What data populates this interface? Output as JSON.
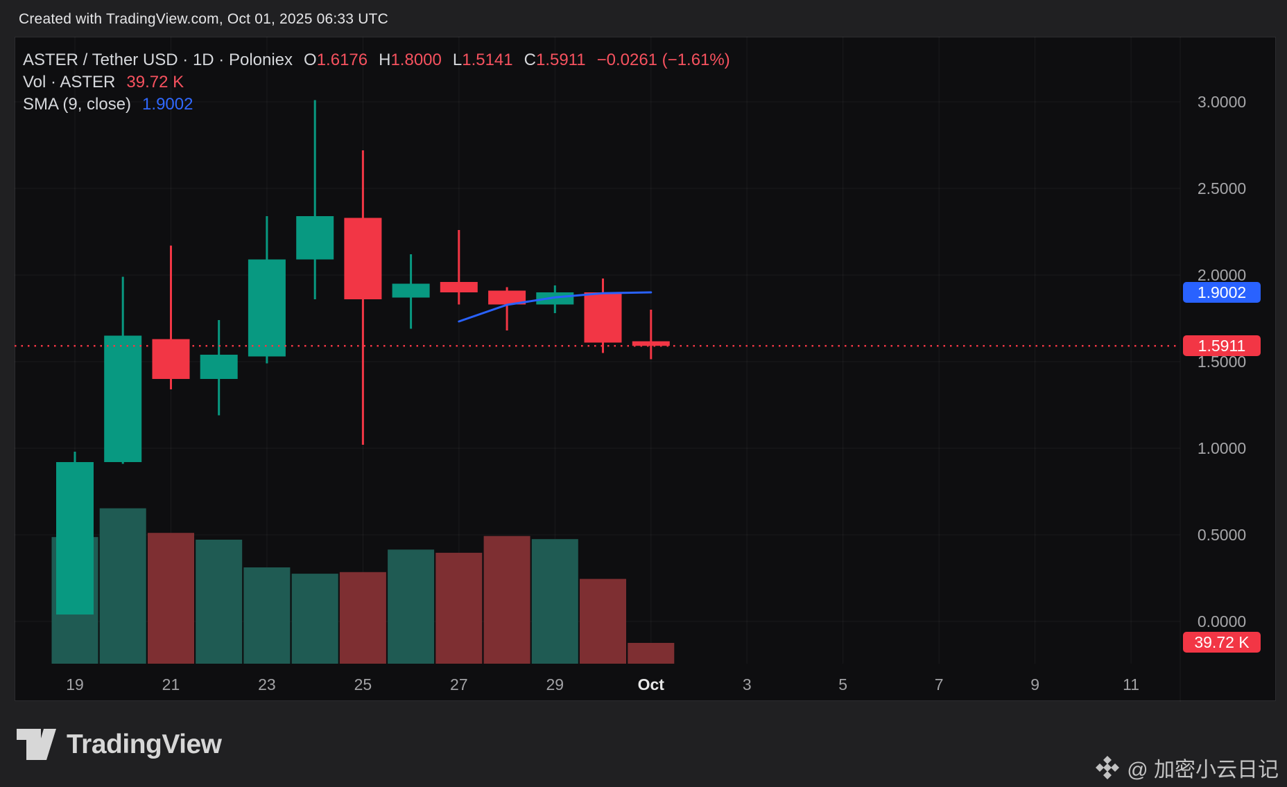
{
  "frame": {
    "attribution": "Created with TradingView.com, Oct 01, 2025 06:33 UTC"
  },
  "legend": {
    "symbol_line": {
      "title": "ASTER / Tether USD · 1D · Poloniex",
      "o_label": "O",
      "o_value": "1.6176",
      "h_label": "H",
      "h_value": "1.8000",
      "l_label": "L",
      "l_value": "1.5141",
      "c_label": "C",
      "c_value": "1.5911",
      "change": "−0.0261 (−1.61%)"
    },
    "volume_line": {
      "label": "Vol · ASTER",
      "value": "39.72 K"
    },
    "sma_line": {
      "label": "SMA (9, close)",
      "value": "1.9002"
    }
  },
  "price_scale": {
    "ticks": [
      {
        "label": "3.0000",
        "value": 3.0
      },
      {
        "label": "2.5000",
        "value": 2.5
      },
      {
        "label": "2.0000",
        "value": 2.0
      },
      {
        "label": "1.5000",
        "value": 1.5
      },
      {
        "label": "1.0000",
        "value": 1.0
      },
      {
        "label": "0.5000",
        "value": 0.5
      },
      {
        "label": "0.0000",
        "value": 0.0
      }
    ],
    "sma_badge": "1.9002",
    "last_price_badge": "1.5911",
    "volume_badge": "39.72 K"
  },
  "time_scale": {
    "ticks": [
      {
        "label": "19",
        "day_index": 0
      },
      {
        "label": "21",
        "day_index": 2
      },
      {
        "label": "23",
        "day_index": 4
      },
      {
        "label": "25",
        "day_index": 6
      },
      {
        "label": "27",
        "day_index": 8
      },
      {
        "label": "29",
        "day_index": 10
      },
      {
        "label": "Oct",
        "day_index": 12,
        "emphasis": true
      },
      {
        "label": "3",
        "day_index": 14
      },
      {
        "label": "5",
        "day_index": 16
      },
      {
        "label": "7",
        "day_index": 18
      },
      {
        "label": "9",
        "day_index": 20
      },
      {
        "label": "11",
        "day_index": 22
      }
    ]
  },
  "chart_data": {
    "type": "candlestick+volume",
    "symbol": "ASTER / Tether USD",
    "interval": "1D",
    "exchange": "Poloniex",
    "title": "ASTER / Tether USD · 1D · Poloniex",
    "price_axis": {
      "min": 0.0,
      "max": 3.0,
      "step": 0.5,
      "grid": true,
      "side": "right"
    },
    "dates": [
      "Sep 19",
      "Sep 20",
      "Sep 21",
      "Sep 22",
      "Sep 23",
      "Sep 24",
      "Sep 25",
      "Sep 26",
      "Sep 27",
      "Sep 28",
      "Sep 29",
      "Sep 30",
      "Oct 1"
    ],
    "ohlc": [
      {
        "o": 0.04,
        "h": 0.98,
        "l": 0.04,
        "c": 0.92
      },
      {
        "o": 0.92,
        "h": 1.99,
        "l": 0.91,
        "c": 1.65
      },
      {
        "o": 1.63,
        "h": 2.17,
        "l": 1.34,
        "c": 1.4
      },
      {
        "o": 1.4,
        "h": 1.74,
        "l": 1.19,
        "c": 1.54
      },
      {
        "o": 1.53,
        "h": 2.34,
        "l": 1.49,
        "c": 2.09
      },
      {
        "o": 2.09,
        "h": 3.01,
        "l": 1.86,
        "c": 2.34
      },
      {
        "o": 2.33,
        "h": 2.72,
        "l": 1.02,
        "c": 1.86
      },
      {
        "o": 1.87,
        "h": 2.12,
        "l": 1.69,
        "c": 1.95
      },
      {
        "o": 1.96,
        "h": 2.26,
        "l": 1.83,
        "c": 1.9
      },
      {
        "o": 1.91,
        "h": 1.93,
        "l": 1.68,
        "c": 1.83
      },
      {
        "o": 1.83,
        "h": 1.94,
        "l": 1.78,
        "c": 1.9
      },
      {
        "o": 1.9,
        "h": 1.98,
        "l": 1.55,
        "c": 1.61
      },
      {
        "o": 1.6176,
        "h": 1.8,
        "l": 1.5141,
        "c": 1.5911
      }
    ],
    "volumes_k_est": [
      242,
      297,
      250,
      237,
      184,
      172,
      175,
      218,
      212,
      244,
      238,
      162,
      39.72
    ],
    "last_volume_label": "39.72 K",
    "sma9": {
      "start_index": 8,
      "values": [
        1.732,
        1.828,
        1.871,
        1.895,
        1.9002
      ]
    },
    "last_price": 1.5911,
    "last_price_line": "dotted"
  },
  "colors": {
    "candle_up": "#089981",
    "candle_down": "#f23645",
    "volume_up": "#1f5b53",
    "volume_down": "#7e2f32",
    "sma": "#2962ff",
    "badge_blue": "#2962ff",
    "badge_red": "#f23645",
    "grid": "rgba(255,255,255,0.055)"
  },
  "footer": {
    "logo_text": "TradingView",
    "watermark_text": "@ 加密小云日记"
  }
}
